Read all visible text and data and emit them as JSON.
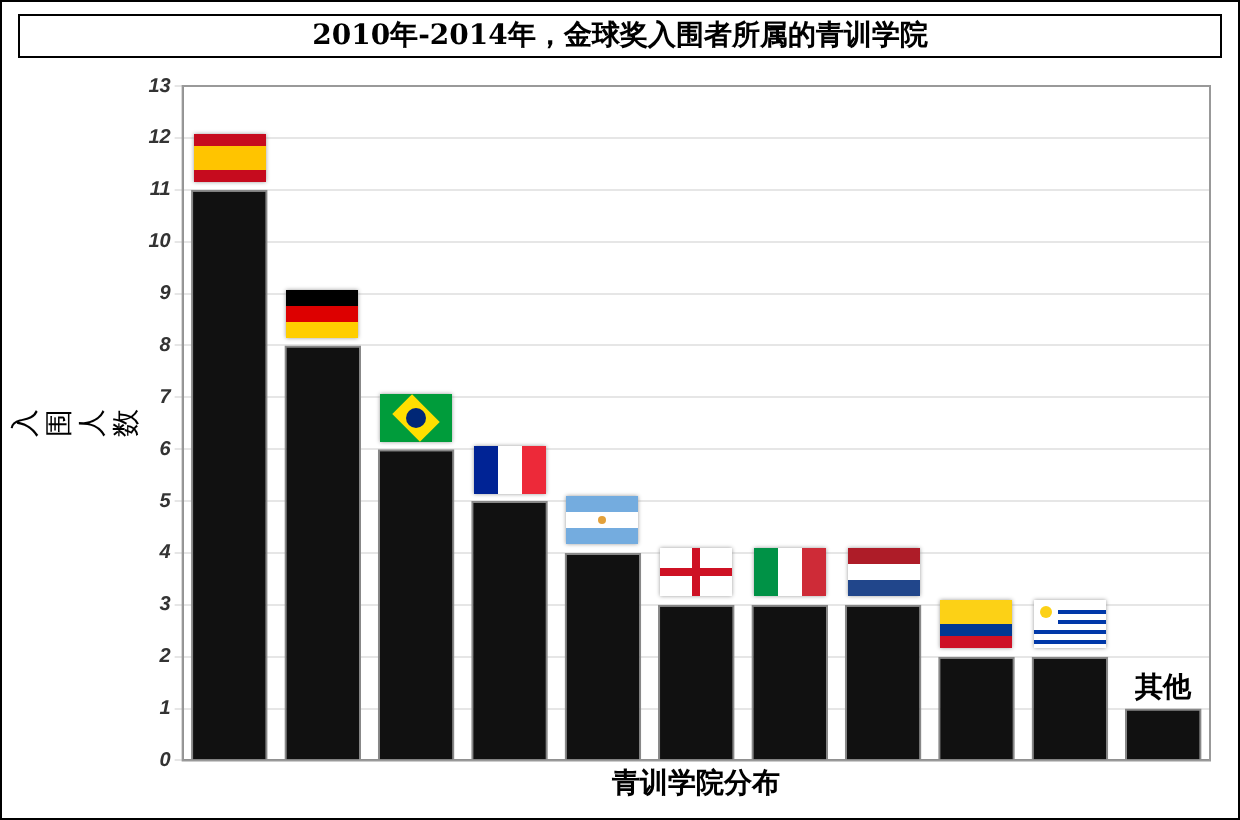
{
  "chart_data": {
    "type": "bar",
    "title": "2010年-2014年，金球奖入围者所属的青训学院",
    "xlabel": "青训学院分布",
    "ylabel": "入围人数",
    "categories": [
      null,
      null,
      null,
      null,
      null,
      null,
      null,
      null,
      null,
      null,
      "其他"
    ],
    "values": [
      11,
      8,
      6,
      5,
      4,
      3,
      3,
      3,
      2,
      2,
      1
    ],
    "color": "#111111",
    "ylim": [
      0,
      13
    ],
    "yticks": [
      0,
      1,
      2,
      3,
      4,
      5,
      6,
      7,
      8,
      9,
      10,
      11,
      12,
      13
    ],
    "grid": "y"
  }
}
